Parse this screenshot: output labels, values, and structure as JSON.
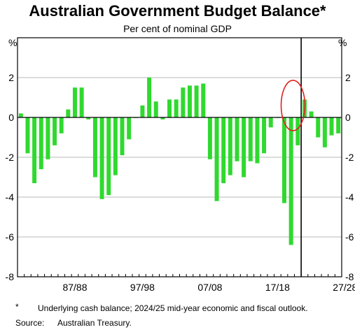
{
  "chart_data": {
    "type": "bar",
    "title": "Australian Government Budget Balance*",
    "subtitle": "Per cent of nominal GDP",
    "unit_left": "%",
    "unit_right": "%",
    "ylim": [
      -8,
      4
    ],
    "yticks": [
      -8,
      -6,
      -4,
      -2,
      0,
      2
    ],
    "x_tick_labels": [
      "87/88",
      "97/98",
      "07/08",
      "17/18",
      "27/28"
    ],
    "forecast_divider_after_index": 41,
    "highlight_circle_indices": [
      40,
      41
    ],
    "bar_color": "#2fd92f",
    "highlight_color": "#e02020",
    "series": [
      {
        "values": [
          0.2,
          -1.8,
          -3.3,
          -2.6,
          -2.1,
          -1.4,
          -0.8,
          0.4,
          1.5,
          1.5,
          -0.1,
          -3.0,
          -4.1,
          -3.9,
          -2.9,
          -1.9,
          -1.1,
          0.0,
          0.6,
          2.0,
          0.8,
          -0.1,
          0.9,
          0.9,
          1.5,
          1.6,
          1.6,
          1.7,
          -2.1,
          -4.2,
          -3.3,
          -2.9,
          -2.2,
          -3.0,
          -2.2,
          -2.3,
          -1.8,
          -0.5,
          0.0,
          -4.3,
          -6.4,
          -1.4,
          0.9,
          0.3,
          -1.0,
          -1.5,
          -0.9,
          -0.8
        ]
      }
    ]
  },
  "footnote": {
    "marker": "*",
    "text": "Underlying cash balance; 2024/25 mid-year economic and fiscal outlook."
  },
  "source": {
    "label": "Source:",
    "text": "Australian Treasury."
  }
}
